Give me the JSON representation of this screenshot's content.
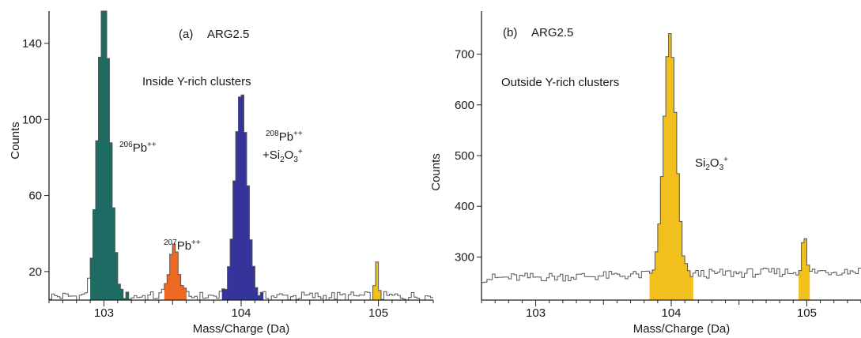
{
  "colors": {
    "axis": "#222222",
    "outline": "#555555",
    "pb206": "#1d6b63",
    "pb207": "#ee6a22",
    "pb208": "#35349a",
    "si2o3": "#f2c01c"
  },
  "chart_data": [
    {
      "type": "bar",
      "panel_label": "(a)",
      "sample": "ARG2.5",
      "subtitle": "Inside Y-rich clusters",
      "xlabel": "Mass/Charge (Da)",
      "ylabel": "Counts",
      "xlim": [
        102.6,
        105.4
      ],
      "ylim": [
        5,
        157
      ],
      "xticks": [
        103,
        104,
        105
      ],
      "yticks": [
        20,
        60,
        100,
        140
      ],
      "bin_width": 0.02,
      "background": {
        "x_start": 102.6,
        "x_end": 105.4,
        "level": 7,
        "amplitude": 2.5
      },
      "peaks": [
        {
          "id": "pb206",
          "label": "Pb",
          "mass": "206",
          "charge": "++",
          "center": 103.0,
          "height": 154,
          "sigma": 0.045,
          "range": [
            102.9,
            103.17
          ]
        },
        {
          "id": "pb207",
          "label": "Pb",
          "mass": "207",
          "charge": "++",
          "center": 103.51,
          "height": 26,
          "sigma": 0.035,
          "range": [
            103.43,
            103.59
          ]
        },
        {
          "id": "pb208",
          "label": "Pb",
          "mass": "208",
          "charge": "++",
          "center": 104.0,
          "height": 108,
          "sigma": 0.045,
          "range": [
            103.87,
            104.15
          ]
        },
        {
          "id": "si2o3",
          "label": "Si₂O₃⁺",
          "center": 104.99,
          "height": 16,
          "sigma": 0.012,
          "range": [
            104.96,
            105.01
          ]
        }
      ],
      "annotations": {
        "pb206": {
          "iso": "206",
          "el": "Pb",
          "chg": "++"
        },
        "pb207": {
          "iso": "207",
          "el": "Pb",
          "chg": "++"
        },
        "pb208_line1": {
          "iso": "208",
          "el": "Pb",
          "chg": "++"
        },
        "pb208_line2": {
          "prefix": "+Si",
          "sub1": "2",
          "mid": "O",
          "sub2": "3",
          "chg": "+"
        }
      }
    },
    {
      "type": "bar",
      "panel_label": "(b)",
      "sample": "ARG2.5",
      "subtitle": "Outside Y-rich clusters",
      "xlabel": "Mass/Charge (Da)",
      "ylabel": "Counts",
      "xlim": [
        102.6,
        105.4
      ],
      "ylim": [
        215,
        785
      ],
      "xticks": [
        103,
        104,
        105
      ],
      "yticks": [
        300,
        400,
        500,
        600,
        700
      ],
      "bin_width": 0.02,
      "background": {
        "x_start": 102.6,
        "x_end": 105.4,
        "level": 258,
        "slope": 15,
        "amplitude": 9
      },
      "peaks": [
        {
          "id": "si2o3",
          "label": "Si₂O₃⁺",
          "center": 103.99,
          "height": 470,
          "sigma": 0.045,
          "range": [
            103.85,
            104.15
          ]
        },
        {
          "id": "si2o3_b",
          "label": "Si₂O₃⁺",
          "center": 104.98,
          "height": 75,
          "sigma": 0.015,
          "range": [
            104.95,
            105.02
          ]
        }
      ],
      "annotations": {
        "si2o3": {
          "prefix": "Si",
          "sub1": "2",
          "mid": "O",
          "sub2": "3",
          "chg": "+"
        }
      }
    }
  ]
}
